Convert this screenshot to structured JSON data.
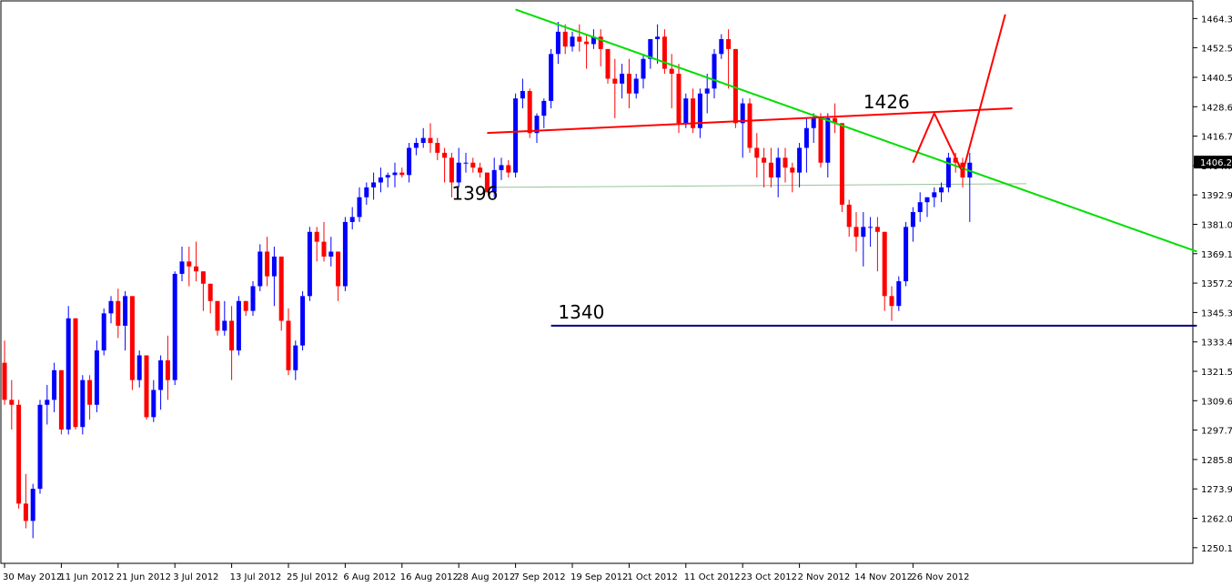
{
  "chart_data": {
    "type": "candlestick",
    "title": "",
    "xlabel": "",
    "ylabel": "",
    "ylim": [
      1246.4,
      1468.9
    ],
    "grid": false,
    "colors": {
      "up": "#0000ff",
      "down": "#ff0000",
      "trendline_green": "#00dd00",
      "trendline_red": "#ff0000",
      "support_line": "#000080",
      "level_line": "#99c299",
      "price_box": "#000000"
    },
    "y_ticks": [
      "1464.35",
      "1452.55",
      "1440.55",
      "1428.65",
      "1416.75",
      "1404.75",
      "1392.95",
      "1381.05",
      "1369.15",
      "1357.25",
      "1345.35",
      "1333.45",
      "1321.55",
      "1309.65",
      "1297.75",
      "1285.85",
      "1273.95",
      "1262.05",
      "1250.15"
    ],
    "x_ticks": [
      {
        "label": "30 May 2012",
        "bar": 0
      },
      {
        "label": "11 Jun 2012",
        "bar": 8
      },
      {
        "label": "21 Jun 2012",
        "bar": 16
      },
      {
        "label": "3 Jul 2012",
        "bar": 24
      },
      {
        "label": "13 Jul 2012",
        "bar": 32
      },
      {
        "label": "25 Jul 2012",
        "bar": 40
      },
      {
        "label": "6 Aug 2012",
        "bar": 48
      },
      {
        "label": "16 Aug 2012",
        "bar": 56
      },
      {
        "label": "28 Aug 2012",
        "bar": 64
      },
      {
        "label": "7 Sep 2012",
        "bar": 72
      },
      {
        "label": "19 Sep 2012",
        "bar": 80
      },
      {
        "label": "1 Oct 2012",
        "bar": 88
      },
      {
        "label": "11 Oct 2012",
        "bar": 96
      },
      {
        "label": "23 Oct 2012",
        "bar": 104
      },
      {
        "label": "2 Nov 2012",
        "bar": 112
      },
      {
        "label": "14 Nov 2012",
        "bar": 120
      },
      {
        "label": "26 Nov 2012",
        "bar": 128
      }
    ],
    "current_price": "1406.25",
    "candles": [
      [
        1325,
        1334,
        1308,
        1310
      ],
      [
        1310,
        1318,
        1298,
        1308
      ],
      [
        1308,
        1310,
        1266,
        1268
      ],
      [
        1268,
        1280,
        1258,
        1261
      ],
      [
        1261,
        1276,
        1254,
        1274
      ],
      [
        1274,
        1310,
        1272,
        1308
      ],
      [
        1308,
        1316,
        1300,
        1310
      ],
      [
        1310,
        1325,
        1305,
        1322
      ],
      [
        1322,
        1322,
        1296,
        1298
      ],
      [
        1298,
        1348,
        1296,
        1343
      ],
      [
        1343,
        1343,
        1298,
        1299
      ],
      [
        1299,
        1320,
        1296,
        1318
      ],
      [
        1318,
        1320,
        1302,
        1308
      ],
      [
        1308,
        1334,
        1305,
        1330
      ],
      [
        1330,
        1347,
        1328,
        1345
      ],
      [
        1345,
        1352,
        1341,
        1350
      ],
      [
        1350,
        1355,
        1335,
        1340
      ],
      [
        1340,
        1354,
        1330,
        1352
      ],
      [
        1352,
        1352,
        1314,
        1318
      ],
      [
        1318,
        1330,
        1315,
        1328
      ],
      [
        1328,
        1328,
        1302,
        1303
      ],
      [
        1303,
        1318,
        1301,
        1314
      ],
      [
        1314,
        1328,
        1306,
        1326
      ],
      [
        1326,
        1336,
        1310,
        1318
      ],
      [
        1318,
        1362,
        1316,
        1361
      ],
      [
        1361,
        1372,
        1358,
        1366
      ],
      [
        1366,
        1372,
        1356,
        1364
      ],
      [
        1364,
        1374,
        1358,
        1362
      ],
      [
        1362,
        1362,
        1346,
        1357
      ],
      [
        1357,
        1357,
        1345,
        1350
      ],
      [
        1350,
        1350,
        1336,
        1338
      ],
      [
        1338,
        1350,
        1336,
        1342
      ],
      [
        1342,
        1348,
        1318,
        1330
      ],
      [
        1330,
        1352,
        1328,
        1350
      ],
      [
        1350,
        1350,
        1344,
        1346
      ],
      [
        1346,
        1358,
        1344,
        1356
      ],
      [
        1356,
        1373,
        1354,
        1370
      ],
      [
        1370,
        1376,
        1356,
        1360
      ],
      [
        1360,
        1372,
        1348,
        1368
      ],
      [
        1368,
        1368,
        1338,
        1342
      ],
      [
        1342,
        1347,
        1320,
        1322
      ],
      [
        1322,
        1334,
        1318,
        1332
      ],
      [
        1332,
        1354,
        1330,
        1352
      ],
      [
        1352,
        1380,
        1350,
        1378
      ],
      [
        1378,
        1380,
        1366,
        1374
      ],
      [
        1374,
        1382,
        1366,
        1368
      ],
      [
        1368,
        1376,
        1364,
        1370
      ],
      [
        1370,
        1370,
        1350,
        1356
      ],
      [
        1356,
        1384,
        1354,
        1382
      ],
      [
        1382,
        1388,
        1379,
        1384
      ],
      [
        1384,
        1396,
        1382,
        1392
      ],
      [
        1392,
        1398,
        1389,
        1396
      ],
      [
        1396,
        1402,
        1391,
        1398
      ],
      [
        1398,
        1404,
        1394,
        1400
      ],
      [
        1400,
        1402,
        1396,
        1401
      ],
      [
        1401,
        1406,
        1396,
        1402
      ],
      [
        1402,
        1404,
        1400,
        1401
      ],
      [
        1401,
        1414,
        1398,
        1412
      ],
      [
        1412,
        1416,
        1409,
        1414
      ],
      [
        1414,
        1420,
        1412,
        1416
      ],
      [
        1416,
        1422,
        1410,
        1414
      ],
      [
        1414,
        1416,
        1407,
        1410
      ],
      [
        1410,
        1412,
        1398,
        1408
      ],
      [
        1408,
        1410,
        1392,
        1398
      ],
      [
        1398,
        1412,
        1396,
        1406
      ],
      [
        1406,
        1410,
        1402,
        1406
      ],
      [
        1406,
        1408,
        1402,
        1404
      ],
      [
        1404,
        1406,
        1400,
        1402
      ],
      [
        1402,
        1402,
        1394,
        1394
      ],
      [
        1394,
        1408,
        1392,
        1403
      ],
      [
        1403,
        1408,
        1399,
        1405
      ],
      [
        1405,
        1407,
        1400,
        1402
      ],
      [
        1402,
        1434,
        1400,
        1432
      ],
      [
        1432,
        1440,
        1428,
        1435
      ],
      [
        1435,
        1436,
        1416,
        1418
      ],
      [
        1418,
        1426,
        1414,
        1425
      ],
      [
        1425,
        1432,
        1420,
        1431
      ],
      [
        1431,
        1452,
        1428,
        1450
      ],
      [
        1450,
        1463,
        1446,
        1459
      ],
      [
        1459,
        1462,
        1450,
        1453
      ],
      [
        1453,
        1459,
        1451,
        1457
      ],
      [
        1457,
        1462,
        1451,
        1455
      ],
      [
        1455,
        1458,
        1444,
        1454
      ],
      [
        1454,
        1460,
        1452,
        1457
      ],
      [
        1457,
        1460,
        1445,
        1452
      ],
      [
        1452,
        1452,
        1438,
        1440
      ],
      [
        1440,
        1448,
        1424,
        1438
      ],
      [
        1438,
        1446,
        1432,
        1442
      ],
      [
        1442,
        1448,
        1428,
        1434
      ],
      [
        1434,
        1442,
        1432,
        1440
      ],
      [
        1440,
        1450,
        1436,
        1448
      ],
      [
        1448,
        1456,
        1444,
        1456
      ],
      [
        1456,
        1462,
        1446,
        1457
      ],
      [
        1457,
        1460,
        1442,
        1444
      ],
      [
        1444,
        1450,
        1428,
        1442
      ],
      [
        1442,
        1446,
        1418,
        1422
      ],
      [
        1422,
        1434,
        1420,
        1432
      ],
      [
        1432,
        1436,
        1418,
        1420
      ],
      [
        1420,
        1436,
        1416,
        1434
      ],
      [
        1434,
        1442,
        1426,
        1436
      ],
      [
        1436,
        1452,
        1432,
        1450
      ],
      [
        1450,
        1458,
        1448,
        1456
      ],
      [
        1456,
        1460,
        1436,
        1452
      ],
      [
        1452,
        1452,
        1420,
        1422
      ],
      [
        1422,
        1432,
        1408,
        1430
      ],
      [
        1430,
        1432,
        1410,
        1412
      ],
      [
        1412,
        1418,
        1400,
        1408
      ],
      [
        1408,
        1412,
        1396,
        1406
      ],
      [
        1406,
        1412,
        1396,
        1400
      ],
      [
        1400,
        1412,
        1392,
        1408
      ],
      [
        1408,
        1412,
        1398,
        1404
      ],
      [
        1404,
        1406,
        1394,
        1402
      ],
      [
        1402,
        1414,
        1396,
        1412
      ],
      [
        1412,
        1424,
        1402,
        1420
      ],
      [
        1420,
        1426,
        1414,
        1424
      ],
      [
        1424,
        1426,
        1404,
        1406
      ],
      [
        1406,
        1426,
        1400,
        1424
      ],
      [
        1424,
        1430,
        1418,
        1422
      ],
      [
        1422,
        1422,
        1386,
        1389
      ],
      [
        1389,
        1391,
        1376,
        1380
      ],
      [
        1380,
        1386,
        1370,
        1376
      ],
      [
        1376,
        1386,
        1364,
        1380
      ],
      [
        1380,
        1384,
        1372,
        1380
      ],
      [
        1380,
        1384,
        1362,
        1378
      ],
      [
        1378,
        1378,
        1346,
        1352
      ],
      [
        1352,
        1356,
        1342,
        1348
      ],
      [
        1348,
        1360,
        1346,
        1358
      ],
      [
        1358,
        1382,
        1356,
        1380
      ],
      [
        1380,
        1388,
        1374,
        1386
      ],
      [
        1386,
        1394,
        1382,
        1390
      ],
      [
        1390,
        1392,
        1384,
        1392
      ],
      [
        1392,
        1396,
        1388,
        1394
      ],
      [
        1394,
        1398,
        1390,
        1396
      ],
      [
        1396,
        1410,
        1394,
        1408
      ],
      [
        1408,
        1410,
        1402,
        1406
      ],
      [
        1406,
        1408,
        1396,
        1400
      ],
      [
        1400,
        1410,
        1382,
        1406
      ]
    ],
    "lines": [
      {
        "name": "green-trendline",
        "from": [
          72,
          1468
        ],
        "to": [
          168,
          1370
        ],
        "color": "#00dd00",
        "width": 2
      },
      {
        "name": "red-neckline",
        "from": [
          68,
          1418
        ],
        "to": [
          142,
          1428
        ],
        "color": "#ff0000",
        "width": 2
      },
      {
        "name": "support-1340",
        "from": [
          77,
          1340
        ],
        "to": [
          168,
          1340
        ],
        "color": "#000080",
        "width": 2
      },
      {
        "name": "level-1396-green",
        "from": [
          68,
          1396
        ],
        "to": [
          144,
          1397.5
        ],
        "color": "#99c299",
        "width": 1
      },
      {
        "name": "projection-path",
        "points": [
          [
            128,
            1406
          ],
          [
            131,
            1426
          ],
          [
            135,
            1402
          ],
          [
            141,
            1466
          ]
        ],
        "color": "#ff0000",
        "width": 2
      }
    ],
    "annotations": [
      {
        "text": "1396",
        "bar": 63,
        "price": 1391
      },
      {
        "text": "1340",
        "bar": 78,
        "price": 1343
      },
      {
        "text": "1426",
        "bar": 121,
        "price": 1428
      }
    ]
  }
}
